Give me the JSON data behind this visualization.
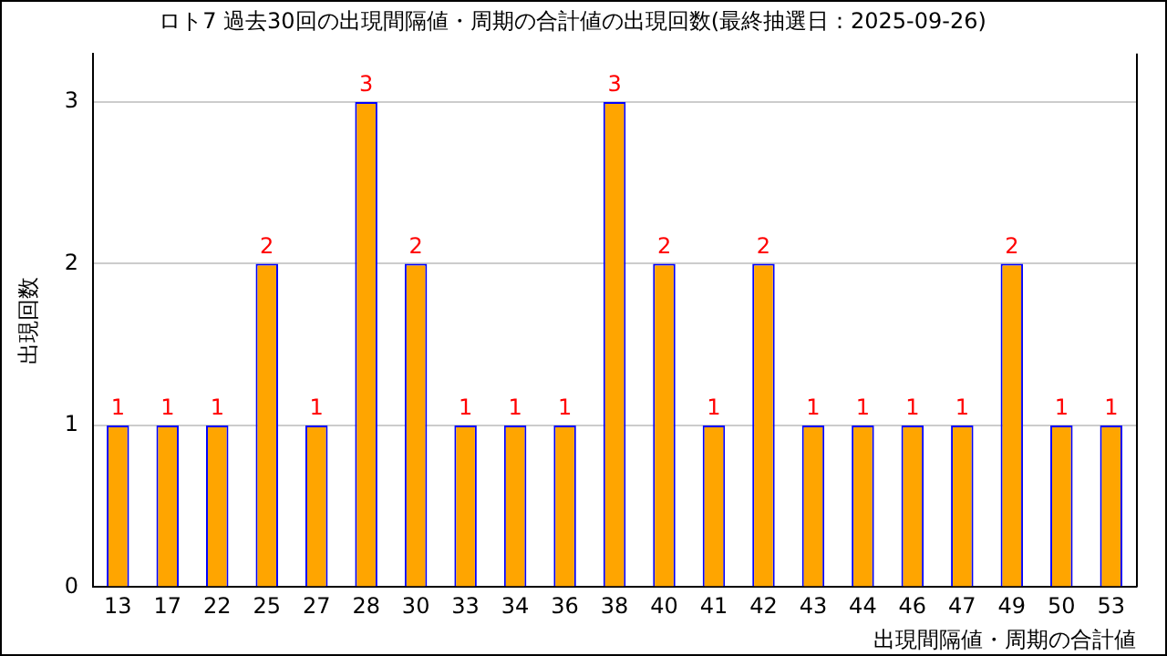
{
  "chart_data": {
    "type": "bar",
    "title": "ロト7 過去30回の出現間隔値・周期の合計値の出現回数(最終抽選日：2025-09-26)",
    "xlabel": "出現間隔値・周期の合計値",
    "ylabel": "出現回数",
    "categories": [
      "13",
      "17",
      "22",
      "25",
      "27",
      "28",
      "30",
      "33",
      "34",
      "36",
      "38",
      "40",
      "41",
      "42",
      "43",
      "44",
      "46",
      "47",
      "49",
      "50",
      "53"
    ],
    "values": [
      1,
      1,
      1,
      2,
      1,
      3,
      2,
      1,
      1,
      1,
      3,
      2,
      1,
      2,
      1,
      1,
      1,
      1,
      2,
      1,
      1
    ],
    "color": "#ffa500",
    "ylim": [
      0,
      3.3
    ],
    "yticks": [
      0,
      1,
      2,
      3
    ],
    "grid": "y",
    "data_labels": true,
    "legend": false
  }
}
